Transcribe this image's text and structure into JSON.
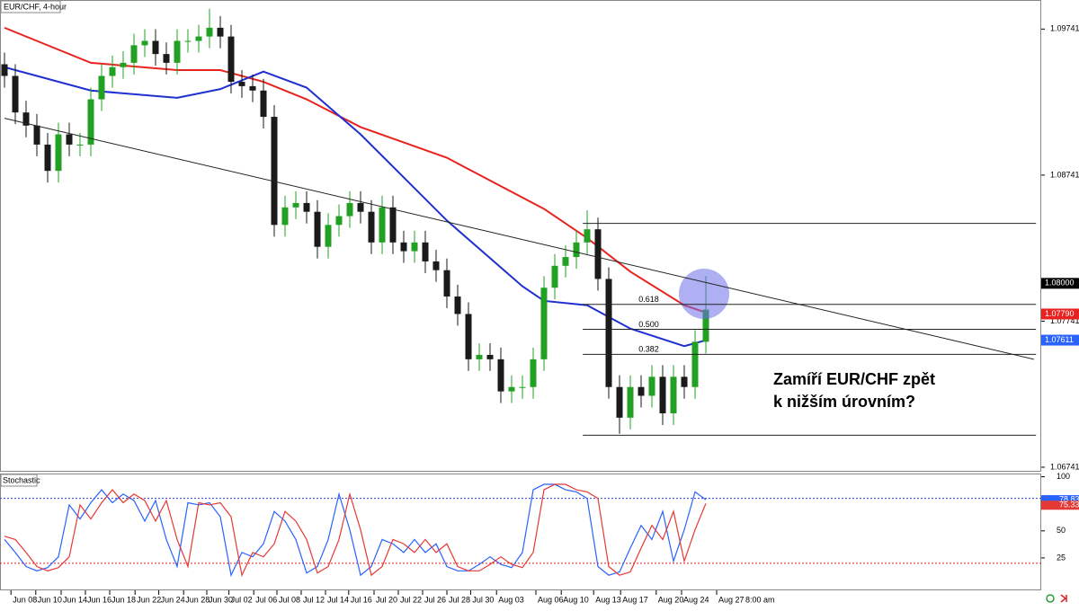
{
  "chart_data": [
    {
      "type": "candlestick",
      "title": "EUR/CHF, 4-hour",
      "xlim": [
        -0.4167,
        96.0833
      ],
      "ylim": [
        1.0671,
        1.0994
      ],
      "yticks": [
        1.06741,
        1.07741,
        1.08741,
        1.09741
      ],
      "xticks": [
        {
          "value": 0.6,
          "label": "Jun 08"
        },
        {
          "value": 2.9,
          "label": "Jun 10"
        },
        {
          "value": 5.25,
          "label": "Jun 14"
        },
        {
          "value": 7.5,
          "label": "Jun 16"
        },
        {
          "value": 9.75,
          "label": "Jun 18"
        },
        {
          "value": 12.1,
          "label": "Jun 22"
        },
        {
          "value": 14.3,
          "label": "Jun 24"
        },
        {
          "value": 16.6,
          "label": "Jun 28"
        },
        {
          "value": 18.75,
          "label": "Jun 30"
        },
        {
          "value": 20.8,
          "label": "Jul 02"
        },
        {
          "value": 23.1,
          "label": "Jul 06"
        },
        {
          "value": 25.25,
          "label": "Jul 08"
        },
        {
          "value": 27.5,
          "label": "Jul 12"
        },
        {
          "value": 29.75,
          "label": "Jul 14"
        },
        {
          "value": 31.9,
          "label": "Jul 16"
        },
        {
          "value": 34.25,
          "label": "Jul 20"
        },
        {
          "value": 36.5,
          "label": "Jul 22"
        },
        {
          "value": 38.75,
          "label": "Jul 26"
        },
        {
          "value": 41,
          "label": "Jul 28"
        },
        {
          "value": 43.2,
          "label": "Jul 30"
        },
        {
          "value": 45.6,
          "label": "Aug 03"
        },
        {
          "value": 49.25,
          "label": "Aug 06"
        },
        {
          "value": 51.6,
          "label": "Aug 10"
        },
        {
          "value": 54.6,
          "label": "Aug 13"
        },
        {
          "value": 57.1,
          "label": "Aug 17"
        },
        {
          "value": 60.4,
          "label": "Aug 20"
        },
        {
          "value": 62.75,
          "label": "Aug 24"
        },
        {
          "value": 66,
          "label": "Aug 27"
        }
      ],
      "time_label": "8:00 am",
      "up_color": "#22a022",
      "down_color": "#1a1a1a",
      "open": [
        1.095,
        1.0942,
        1.0917,
        1.0908,
        1.0895,
        1.0877,
        1.0902,
        1.0895,
        1.0895,
        1.0926,
        1.0942,
        1.0948,
        1.0951,
        1.0963,
        1.0966,
        1.0957,
        1.0951,
        1.0966,
        1.0966,
        1.0969,
        1.0975,
        1.0969,
        1.0938,
        1.0935,
        1.0932,
        1.0914,
        1.084,
        1.0852,
        1.0855,
        1.0849,
        1.0825,
        1.084,
        1.0846,
        1.0855,
        1.0849,
        1.0828,
        1.0852,
        1.0828,
        1.0822,
        1.0828,
        1.0815,
        1.0809,
        1.0791,
        1.0779,
        1.0748,
        1.0751,
        1.0748,
        1.0726,
        1.0729,
        1.0729,
        1.0748,
        1.0797,
        1.0812,
        1.0818,
        1.0828,
        1.0837,
        1.0803,
        1.0729,
        1.0708,
        1.0729,
        1.0723,
        1.0736,
        1.0711,
        1.0736,
        1.0729,
        1.076
      ],
      "high": [
        1.0958,
        1.095,
        1.0925,
        1.0916,
        1.0903,
        1.091,
        1.091,
        1.0903,
        1.0934,
        1.095,
        1.0956,
        1.0959,
        1.0971,
        1.0974,
        1.0974,
        1.0965,
        1.0974,
        1.0974,
        1.0977,
        1.0988,
        1.0983,
        1.0977,
        1.0946,
        1.0943,
        1.094,
        1.0922,
        1.086,
        1.0863,
        1.0863,
        1.0857,
        1.0848,
        1.0854,
        1.0863,
        1.0863,
        1.0857,
        1.086,
        1.086,
        1.0836,
        1.0836,
        1.0836,
        1.0823,
        1.0817,
        1.0799,
        1.0787,
        1.0759,
        1.0759,
        1.0756,
        1.0737,
        1.0737,
        1.0756,
        1.0805,
        1.082,
        1.0826,
        1.0836,
        1.085,
        1.0845,
        1.0811,
        1.0737,
        1.0737,
        1.0737,
        1.0744,
        1.0744,
        1.0744,
        1.0744,
        1.0768,
        1.0805
      ],
      "low": [
        1.0934,
        1.0909,
        1.09,
        1.0887,
        1.0869,
        1.0869,
        1.0887,
        1.0887,
        1.0887,
        1.0918,
        1.0934,
        1.094,
        1.0943,
        1.0955,
        1.0949,
        1.0943,
        1.0943,
        1.0958,
        1.0958,
        1.0961,
        1.0961,
        1.093,
        1.0927,
        1.0924,
        1.0906,
        1.0832,
        1.0832,
        1.0844,
        1.0841,
        1.0817,
        1.0817,
        1.0832,
        1.0838,
        1.0841,
        1.082,
        1.082,
        1.082,
        1.0814,
        1.0814,
        1.0807,
        1.0801,
        1.0783,
        1.0771,
        1.074,
        1.074,
        1.074,
        1.0718,
        1.0718,
        1.0721,
        1.0721,
        1.074,
        1.0789,
        1.0804,
        1.081,
        1.082,
        1.0795,
        1.0721,
        1.0697,
        1.07,
        1.0715,
        1.0715,
        1.0703,
        1.0703,
        1.0721,
        1.0721,
        1.0752
      ],
      "close": [
        1.0942,
        1.0917,
        1.0908,
        1.0895,
        1.0877,
        1.0902,
        1.0895,
        1.0895,
        1.0926,
        1.0942,
        1.0948,
        1.0951,
        1.0963,
        1.0966,
        1.0957,
        1.0951,
        1.0966,
        1.0966,
        1.0969,
        1.0975,
        1.0969,
        1.0938,
        1.0935,
        1.0932,
        1.0914,
        1.084,
        1.0852,
        1.0855,
        1.0849,
        1.0825,
        1.084,
        1.0846,
        1.0855,
        1.0849,
        1.0828,
        1.0852,
        1.0828,
        1.0822,
        1.0828,
        1.0815,
        1.0809,
        1.0791,
        1.0779,
        1.0748,
        1.0751,
        1.0748,
        1.0726,
        1.0729,
        1.0729,
        1.0748,
        1.0797,
        1.0812,
        1.0818,
        1.0828,
        1.0837,
        1.0803,
        1.0729,
        1.0708,
        1.0729,
        1.0723,
        1.0736,
        1.0711,
        1.0736,
        1.0729,
        1.076,
        1.0782
      ],
      "lines": [
        {
          "color": "#e8231f",
          "x": [
            0,
            8,
            16,
            20,
            24,
            28,
            33,
            41,
            50,
            54,
            58,
            63,
            65
          ],
          "values": [
            1.0975,
            1.0951,
            1.0946,
            1.0946,
            1.0938,
            1.0926,
            1.0907,
            1.0886,
            1.0851,
            1.0831,
            1.0808,
            1.0785,
            1.078
          ]
        },
        {
          "color": "#1f2fd0",
          "x": [
            0,
            8,
            16,
            20,
            24,
            28,
            33,
            41,
            48,
            50,
            54,
            58,
            63,
            65
          ],
          "values": [
            1.0948,
            1.0932,
            1.0927,
            1.0933,
            1.0945,
            1.0934,
            1.0902,
            1.0843,
            1.0798,
            1.0788,
            1.0785,
            1.0769,
            1.0757,
            1.0761
          ]
        }
      ],
      "trendline": {
        "x": [
          0,
          95.4
        ],
        "values": [
          1.0913,
          1.0748
        ]
      },
      "fib": {
        "high": 1.0841,
        "low": 1.0696,
        "x": [
          53.6,
          95.6
        ],
        "levels": [
          0.618,
          {
            "value": 0.5,
            "label": "0.500"
          },
          0.382
        ]
      },
      "price_labels": [
        {
          "value": 1.08,
          "label": "1.08000",
          "color": "#000000"
        },
        {
          "value": 1.0779,
          "label": "1.07790",
          "color": "#e8231f"
        },
        {
          "value": 1.07611,
          "color": "#2962ff"
        }
      ],
      "annotation": [
        "Zamíří EUR/CHF zpět",
        "k nižším úrovním?"
      ]
    },
    {
      "type": "line",
      "title": "Stochastic",
      "ylim": [
        -5,
        103
      ],
      "yticks": [
        25,
        50,
        75,
        100
      ],
      "levels": [
        {
          "value": 80,
          "color": "#3040d0"
        },
        {
          "value": 20,
          "color": "#e02020"
        }
      ],
      "series": [
        {
          "color": "#2962ff",
          "values": [
            42,
            30,
            17,
            13,
            16,
            26,
            74,
            61,
            76,
            88,
            76,
            84,
            78,
            59,
            78,
            42,
            17,
            76,
            74,
            76,
            63,
            9,
            30,
            26,
            38,
            68,
            59,
            42,
            11,
            17,
            42,
            84,
            51,
            9,
            17,
            42,
            38,
            30,
            42,
            30,
            38,
            17,
            13,
            13,
            19,
            26,
            19,
            16,
            30,
            88,
            93,
            93,
            88,
            86,
            80,
            17,
            9,
            12,
            34,
            55,
            42,
            68,
            22,
            51,
            86,
            78.83
          ]
        },
        {
          "color": "#e53935",
          "values": [
            45,
            42,
            30,
            17,
            13,
            16,
            26,
            74,
            61,
            76,
            88,
            76,
            84,
            78,
            59,
            78,
            42,
            17,
            76,
            74,
            76,
            63,
            9,
            30,
            26,
            38,
            68,
            59,
            42,
            11,
            17,
            42,
            84,
            51,
            9,
            17,
            42,
            38,
            30,
            42,
            30,
            38,
            17,
            13,
            13,
            19,
            26,
            19,
            16,
            30,
            88,
            93,
            93,
            88,
            86,
            80,
            17,
            9,
            12,
            34,
            55,
            42,
            68,
            22,
            51,
            75.33
          ]
        }
      ]
    }
  ]
}
